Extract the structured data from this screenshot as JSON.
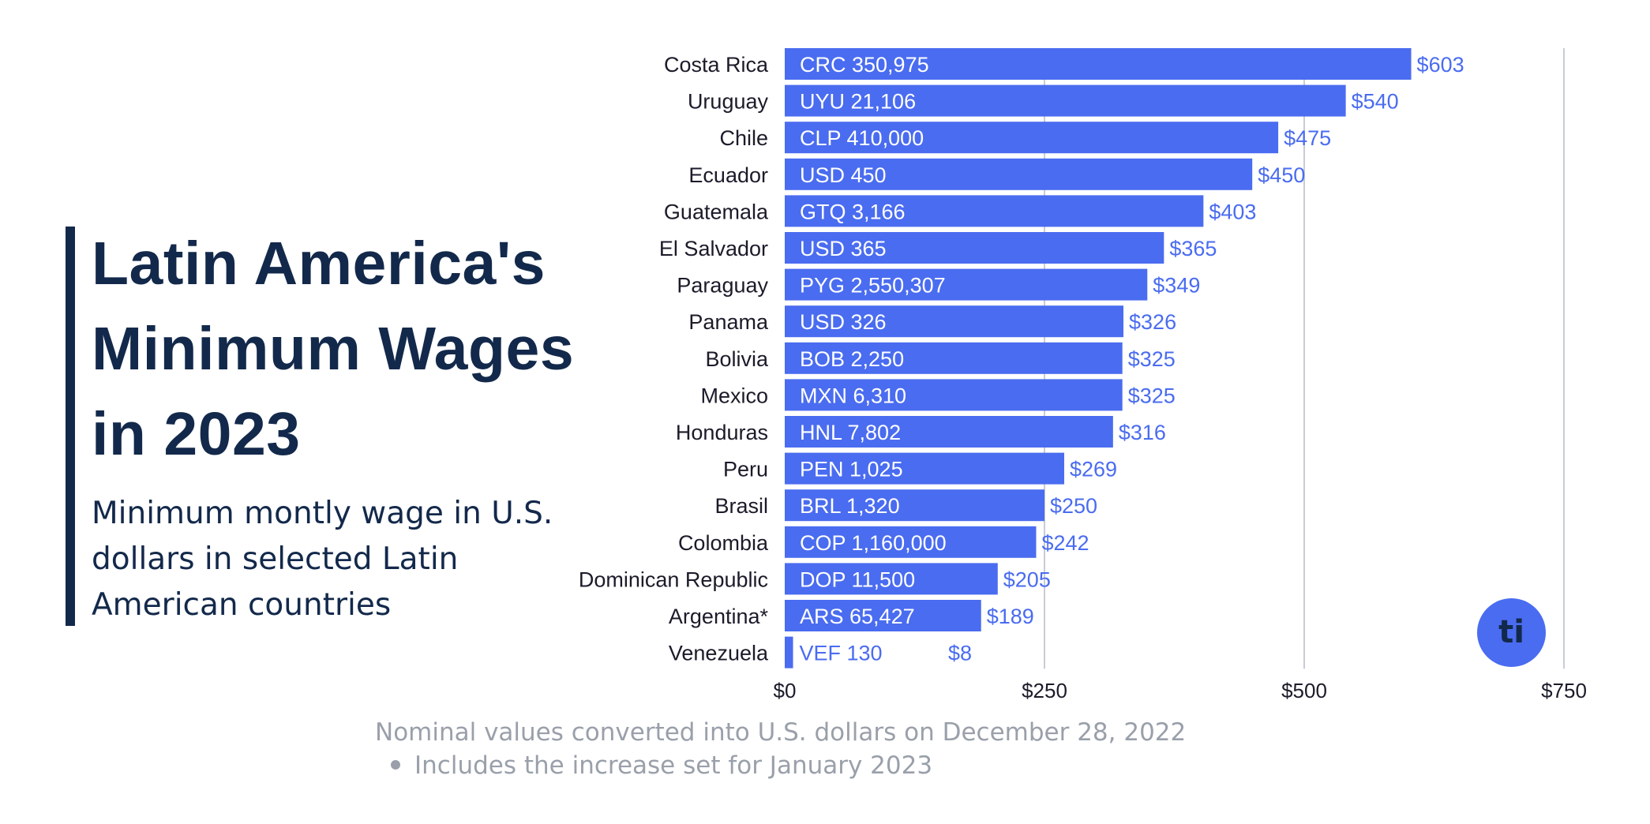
{
  "title": "Latin America's Minimum Wages in 2023",
  "subtitle": "Minimum montly wage in U.S. dollars in selected Latin American countries",
  "footnote": "Nominal values converted into U.S. dollars on December 28, 2022",
  "footnote_bullet": "Includes the increase set for January 2023",
  "logo_text": "ti",
  "colors": {
    "bar": "#4a6cf0",
    "title": "#13294b",
    "grid": "#c9ccd6",
    "footnote": "#9aa0aa"
  },
  "chart_data": {
    "type": "bar",
    "orientation": "horizontal",
    "categories": [
      "Costa Rica",
      "Uruguay",
      "Chile",
      "Ecuador",
      "Guatemala",
      "El Salvador",
      "Paraguay",
      "Panama",
      "Bolivia",
      "Mexico",
      "Honduras",
      "Peru",
      "Brasil",
      "Colombia",
      "Dominican Republic",
      "Argentina*",
      "Venezuela"
    ],
    "values": [
      603,
      540,
      475,
      450,
      403,
      365,
      349,
      326,
      325,
      325,
      316,
      269,
      250,
      242,
      205,
      189,
      8
    ],
    "value_labels": [
      "$603",
      "$540",
      "$475",
      "$450",
      "$403",
      "$365",
      "$349",
      "$326",
      "$325",
      "$325",
      "$316",
      "$269",
      "$250",
      "$242",
      "$205",
      "$189",
      "$8"
    ],
    "local_currency_labels": [
      "CRC 350,975",
      "UYU 21,106",
      "CLP 410,000",
      "USD 450",
      "GTQ 3,166",
      "USD 365",
      "PYG 2,550,307",
      "USD 326",
      "BOB 2,250",
      "MXN 6,310",
      "HNL 7,802",
      "PEN 1,025",
      "BRL 1,320",
      "COP 1,160,000",
      "DOP 11,500",
      "ARS 65,427",
      "VEF 130"
    ],
    "x_ticks": [
      0,
      250,
      500,
      750
    ],
    "x_tick_labels": [
      "$0",
      "$250",
      "$500",
      "$750"
    ],
    "xlim": [
      0,
      750
    ],
    "grid": true,
    "legend": "none"
  }
}
